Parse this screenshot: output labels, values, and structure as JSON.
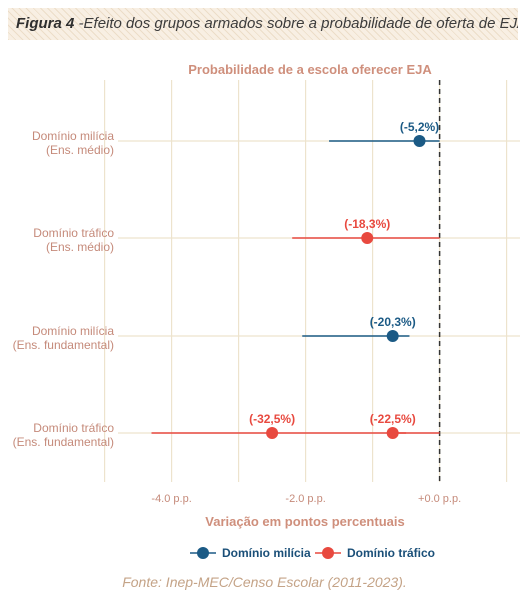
{
  "figure": {
    "label": "Figura 4",
    "caption": " -Efeito dos grupos armados sobre a probabilidade de oferta de EJA"
  },
  "source": "Fonte: Inep-MEC/Censo Escolar (2011-2023).",
  "chart_data": {
    "type": "dot",
    "title": "Probabilidade de a escola oferecer EJA",
    "xlabel": "Variação em pontos percentuais",
    "ylabel": "",
    "xlim": [
      -4.8,
      1.2
    ],
    "xticks": [
      {
        "value": -4.0,
        "label": "-4.0 p.p."
      },
      {
        "value": -2.0,
        "label": "-2.0 p.p."
      },
      {
        "value": 0.0,
        "label": "+0.0 p.p."
      }
    ],
    "reference_line": 0,
    "grid": true,
    "legend_position": "bottom",
    "series": [
      {
        "name": "Domínio milícia",
        "color": "#1b5a85"
      },
      {
        "name": "Domínio tráfico",
        "color": "#e8493f"
      }
    ],
    "categories": [
      {
        "line1": "Domínio milícia",
        "line2": "(Ens. médio)"
      },
      {
        "line1": "Domínio tráfico",
        "line2": "(Ens. médio)"
      },
      {
        "line1": "Domínio milícia",
        "line2": "(Ens. fundamental)"
      },
      {
        "line1": "Domínio tráfico",
        "line2": "(Ens. fundamental)"
      }
    ],
    "points": [
      {
        "category": 0,
        "series": 0,
        "x": -0.3,
        "ci": [
          -1.65,
          0.0
        ],
        "label": "(-5,2%)"
      },
      {
        "category": 1,
        "series": 1,
        "x": -1.08,
        "ci": [
          -2.2,
          0.0
        ],
        "label": "(-18,3%)"
      },
      {
        "category": 2,
        "series": 0,
        "x": -0.7,
        "ci": [
          -2.05,
          -0.45
        ],
        "label": "(-20,3%)"
      },
      {
        "category": 3,
        "series": 1,
        "x": -2.5,
        "ci": [
          -4.3,
          -0.5
        ],
        "label": "(-32,5%)"
      },
      {
        "category": 3,
        "series": 1,
        "x": -0.7,
        "ci": [
          -0.7,
          0.0
        ],
        "label": "(-22,5%)"
      }
    ]
  }
}
